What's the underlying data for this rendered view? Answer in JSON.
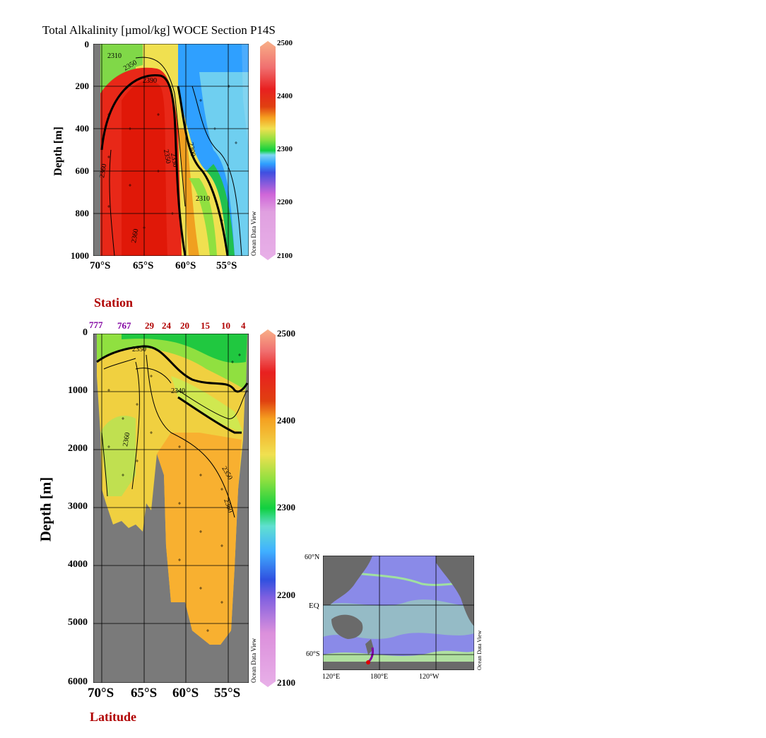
{
  "title": "Total Alkalinity [µmol/kg]  WOCE Section P14S",
  "watermark": "Ocean Data View",
  "station_label": "Station",
  "latitude_label": "Latitude",
  "colorbar": {
    "ticks": [
      "2500",
      "2400",
      "2300",
      "2200",
      "2100"
    ],
    "colors": [
      "#e8b0e8",
      "#cf66d8",
      "#3f4fe0",
      "#2fa0ff",
      "#7fd8f0",
      "#0fd040",
      "#90e040",
      "#f0e050",
      "#f5a020",
      "#e04010",
      "#f06060",
      "#f8b088"
    ]
  },
  "chart_data": [
    {
      "type": "heatmap",
      "title": "Total Alkalinity [µmol/kg]  WOCE Section P14S",
      "ylabel": "Depth [m]",
      "xlabel": "",
      "x_ticks": [
        "70°S",
        "65°S",
        "60°S",
        "55°S"
      ],
      "y_ticks": [
        "0",
        "200",
        "400",
        "600",
        "800",
        "1000"
      ],
      "ylim": [
        0,
        1000
      ],
      "xlim": [
        -71,
        -53
      ],
      "contour_labels": [
        "2310",
        "2350",
        "2390",
        "2360",
        "2350",
        "2330",
        "2300",
        "2310",
        "2360"
      ],
      "colorbar_range": [
        2100,
        2500
      ],
      "grid": true
    },
    {
      "type": "heatmap",
      "ylabel": "Depth [m]",
      "xlabel": "Latitude",
      "x_ticks": [
        "70°S",
        "65°S",
        "60°S",
        "55°S"
      ],
      "y_ticks": [
        "0",
        "1000",
        "2000",
        "3000",
        "4000",
        "5000",
        "6000"
      ],
      "ylim": [
        0,
        6000
      ],
      "xlim": [
        -71,
        -53
      ],
      "station_ticks": [
        {
          "label": "777",
          "color": "#8000a0"
        },
        {
          "label": "767",
          "color": "#8000a0"
        },
        {
          "label": "29",
          "color": "#b00000"
        },
        {
          "label": "24",
          "color": "#b00000"
        },
        {
          "label": "20",
          "color": "#b00000"
        },
        {
          "label": "15",
          "color": "#b00000"
        },
        {
          "label": "10",
          "color": "#b00000"
        },
        {
          "label": "4",
          "color": "#b00000"
        }
      ],
      "contour_labels": [
        "2350",
        "2340",
        "2360",
        "2350",
        "2360"
      ],
      "colorbar_range": [
        2100,
        2500
      ],
      "grid": true
    },
    {
      "type": "map",
      "lat_ticks": [
        "60°N",
        "EQ",
        "60°S"
      ],
      "lon_ticks": [
        "120°E",
        "180°E",
        "120°W"
      ]
    }
  ]
}
